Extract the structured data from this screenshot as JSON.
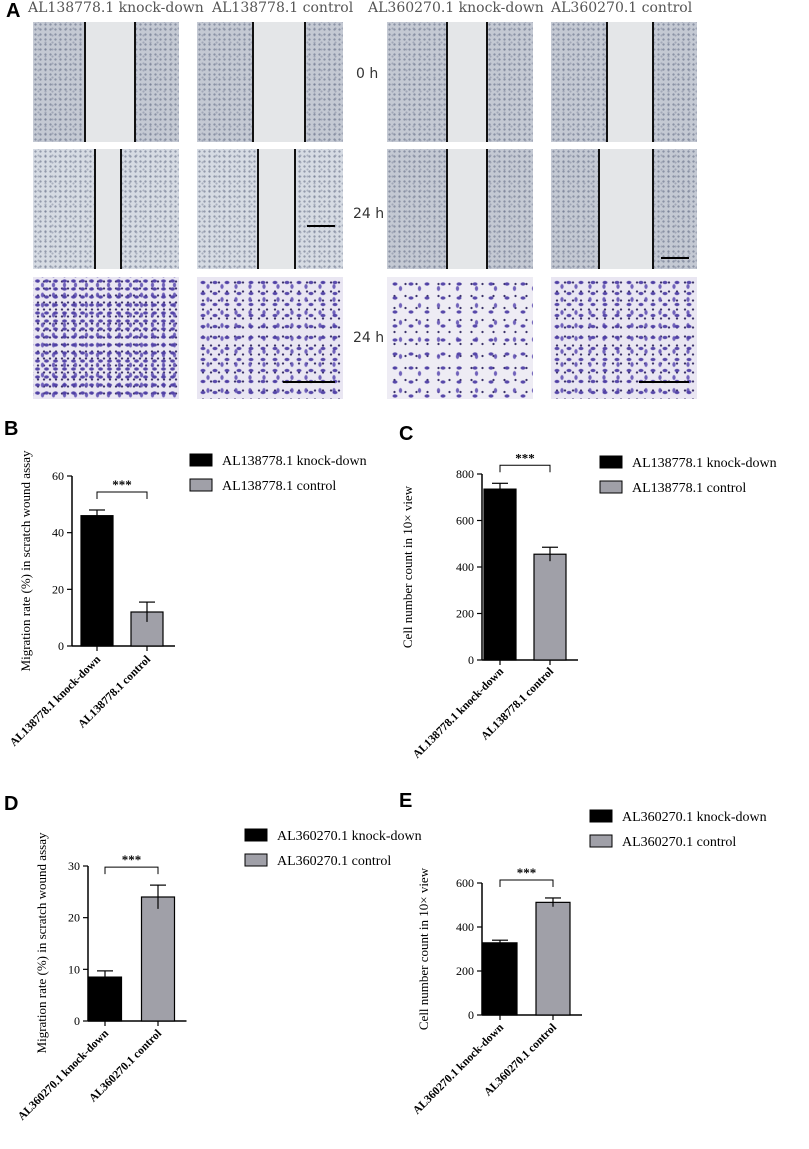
{
  "panel_labels": {
    "A": "A",
    "B": "B",
    "C": "C",
    "D": "D",
    "E": "E"
  },
  "micrograph": {
    "column_titles": [
      "AL138778.1 knock-down",
      "AL138778.1 control",
      "AL360270.1 knock-down",
      "AL360270.1 control"
    ],
    "row_times": [
      "0 h",
      "24 h",
      "24 h"
    ]
  },
  "colors": {
    "knockdown": "#000000",
    "control": "#a0a0a8"
  },
  "chart_data": [
    {
      "id": "B",
      "type": "bar",
      "ylabel": "Migration rate (%) in scratch wound assay",
      "categories": [
        "AL138778.1 knock-down",
        "AL138778.1 control"
      ],
      "values": [
        46,
        12
      ],
      "errors": [
        2,
        3.5
      ],
      "ylim": [
        0,
        60
      ],
      "yticks": [
        0,
        20,
        40,
        60
      ],
      "significance": "***",
      "legend": [
        "AL138778.1 knock-down",
        "AL138778.1 control"
      ],
      "legend_position": "right"
    },
    {
      "id": "C",
      "type": "bar",
      "ylabel": "Cell number count in 10× view",
      "categories": [
        "AL138778.1 knock-down",
        "AL138778.1 control"
      ],
      "values": [
        735,
        455
      ],
      "errors": [
        25,
        30
      ],
      "ylim": [
        0,
        800
      ],
      "yticks": [
        0,
        200,
        400,
        600,
        800
      ],
      "significance": "***",
      "legend": [
        "AL138778.1 knock-down",
        "AL138778.1 control"
      ],
      "legend_position": "right"
    },
    {
      "id": "D",
      "type": "bar",
      "ylabel": "Migration rate (%) in scratch wound assay",
      "categories": [
        "AL360270.1 knock-down",
        "AL360270.1 control"
      ],
      "values": [
        8.5,
        24
      ],
      "errors": [
        1.2,
        2.3
      ],
      "ylim": [
        0,
        30
      ],
      "yticks": [
        0,
        10,
        20,
        30
      ],
      "significance": "***",
      "legend": [
        "AL360270.1 knock-down",
        "AL360270.1 control"
      ],
      "legend_position": "right"
    },
    {
      "id": "E",
      "type": "bar",
      "ylabel": "Cell number count in 10× view",
      "categories": [
        "AL360270.1 knock-down",
        "AL360270.1 control"
      ],
      "values": [
        328,
        512
      ],
      "errors": [
        12,
        20
      ],
      "ylim": [
        0,
        600
      ],
      "yticks": [
        0,
        200,
        400,
        600
      ],
      "significance": "***",
      "legend": [
        "AL360270.1 knock-down",
        "AL360270.1  control"
      ],
      "legend_position": "right"
    }
  ]
}
